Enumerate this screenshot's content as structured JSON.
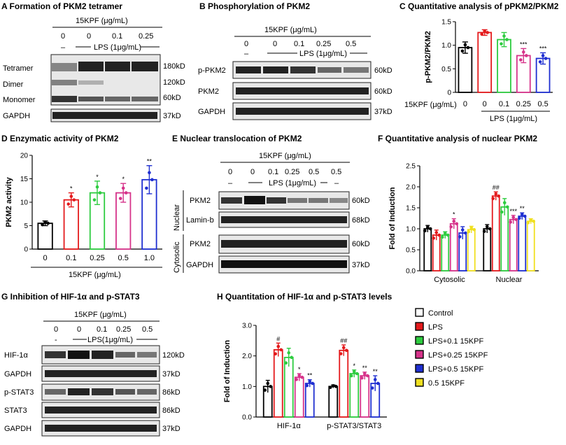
{
  "figure": {
    "colors": {
      "control": "#000000",
      "lps": "#e41a1c",
      "lps01": "#2ecc40",
      "lps025": "#d6338a",
      "lps05": "#1f2fd1",
      "kpf05": "#f0e020"
    },
    "panel_a": {
      "title": "A Formation of PKM2 tetramer",
      "treatment": "15KPF (μg/mL)",
      "doses": [
        "0",
        "0",
        "0.1",
        "0.25"
      ],
      "dash": "–",
      "lps": "LPS (1μg/mL)",
      "rows": [
        "Tetramer",
        "Dimer",
        "Monomer",
        "GAPDH"
      ],
      "sizes": [
        "180kD",
        "120kD",
        "60kD",
        "37kD"
      ]
    },
    "panel_b": {
      "title": "B Phosphorylation of PKM2",
      "treatment": "15KPF (μg/mL)",
      "doses": [
        "0",
        "0",
        "0.1",
        "0.25",
        "0.5"
      ],
      "dash": "–",
      "lps": "LPS (1μg/mL)",
      "rows": [
        "p-PKM2",
        "PKM2",
        "GAPDH"
      ],
      "sizes": [
        "60kD",
        "60kD",
        "37kD"
      ]
    },
    "panel_c": {
      "title": "C Quantitative analysis of pPKM2/PKM2",
      "treatment": "15KPF (μg/mL)",
      "lps": "LPS (1μg/mL)"
    },
    "panel_d": {
      "title": "D Enzymatic activity of PKM2",
      "xlabel": "15KPF (μg/mL)"
    },
    "panel_e": {
      "title": "E Nuclear translocation of PKM2",
      "treatment": "15KPF (μg/mL)",
      "doses": [
        "0",
        "0",
        "0.1",
        "0.25",
        "0.5",
        "0.5"
      ],
      "dash": "–",
      "lps": "LPS (1μg/mL)",
      "group1": "Nuclear",
      "group2": "Cytosolic",
      "rows": [
        "PKM2",
        "Lamin-b",
        "PKM2",
        "GAPDH"
      ],
      "sizes": [
        "60kD",
        "68kD",
        "60kD",
        "37kD"
      ]
    },
    "panel_f": {
      "title": "F Quantitative analysis of nuclear PKM2"
    },
    "panel_g": {
      "title": "G Inhibition of HIF-1α and p-STAT3",
      "treatment": "15KPF (μg/mL)",
      "doses": [
        "0",
        "0",
        "0.1",
        "0.25",
        "0.5"
      ],
      "dash": "-",
      "lps": "LPS(1μg/mL)",
      "rows": [
        "HIF-1α",
        "GAPDH",
        "p-STAT3",
        "STAT3",
        "GAPDH"
      ],
      "sizes": [
        "120kD",
        "37kD",
        "86kD",
        "86kD",
        "37kD"
      ]
    },
    "panel_h": {
      "title": "H Quantitation of HIF-1α and p-STAT3 levels"
    },
    "legend": [
      "Control",
      "LPS",
      "LPS+0.1 15KPF",
      "LPS+0.25 15KPF",
      "LPS+0.5 15KPF",
      "0.5 15KPF"
    ]
  },
  "chart_data": [
    {
      "type": "bar",
      "panel": "C",
      "ylabel": "p-PKM2/PKM2",
      "ylim": [
        0,
        1.5
      ],
      "yticks": [
        "0",
        "0.5",
        "1.0",
        "1.5"
      ],
      "categories": [
        "0",
        "0",
        "0.1",
        "0.25",
        "0.5"
      ],
      "values": [
        0.95,
        1.27,
        1.12,
        0.78,
        0.72
      ],
      "errors": [
        0.12,
        0.06,
        0.15,
        0.15,
        0.12
      ],
      "marks": [
        "",
        "",
        "",
        "***",
        "***"
      ],
      "x_row_label": "15KPF (μg/mL)",
      "group_label": "LPS (1μg/mL)"
    },
    {
      "type": "bar",
      "panel": "D",
      "ylabel": "PKM2 activity",
      "ylim": [
        0,
        20
      ],
      "yticks": [
        "0",
        "5",
        "10",
        "15",
        "20"
      ],
      "categories": [
        "0",
        "0.1",
        "0.25",
        "0.5",
        "1.0"
      ],
      "values": [
        5.5,
        10.5,
        12.0,
        12.0,
        14.8
      ],
      "errors": [
        0.5,
        1.5,
        2.5,
        2.0,
        3.0
      ],
      "marks": [
        "",
        "*",
        "*",
        "*",
        "**"
      ],
      "xlabel": "15KPF (μg/mL)"
    },
    {
      "type": "bar",
      "panel": "F",
      "ylabel": "Fold of Induction",
      "ylim": [
        0,
        2.5
      ],
      "yticks": [
        "0.0",
        "0.5",
        "1.0",
        "1.5",
        "2.0",
        "2.5"
      ],
      "categories": [
        "Cytosolic",
        "Nuclear"
      ],
      "series": [
        {
          "name": "Control",
          "values": [
            1.0,
            1.0
          ],
          "errors": [
            0.08,
            0.1
          ],
          "marks": [
            "",
            ""
          ]
        },
        {
          "name": "LPS",
          "values": [
            0.85,
            1.78
          ],
          "errors": [
            0.12,
            0.1
          ],
          "marks": [
            "",
            "##"
          ]
        },
        {
          "name": "LPS+0.1 15KPF",
          "values": [
            0.85,
            1.52
          ],
          "errors": [
            0.08,
            0.2
          ],
          "marks": [
            "",
            ""
          ]
        },
        {
          "name": "LPS+0.25 15KPF",
          "values": [
            1.12,
            1.22
          ],
          "errors": [
            0.12,
            0.1
          ],
          "marks": [
            "*",
            "***"
          ]
        },
        {
          "name": "LPS+0.5 15KPF",
          "values": [
            0.9,
            1.3
          ],
          "errors": [
            0.15,
            0.08
          ],
          "marks": [
            "",
            "**"
          ]
        },
        {
          "name": "0.5 15KPF",
          "values": [
            0.98,
            1.18
          ],
          "errors": [
            0.08,
            0.06
          ],
          "marks": [
            "",
            ""
          ]
        }
      ]
    },
    {
      "type": "bar",
      "panel": "H",
      "ylabel": "Fold of Induction",
      "ylim": [
        0,
        3.0
      ],
      "yticks": [
        "0.0",
        "1.0",
        "2.0",
        "3.0"
      ],
      "categories": [
        "HIF-1α",
        "p-STAT3/STAT3"
      ],
      "series": [
        {
          "name": "Control",
          "values": [
            1.0,
            1.0
          ],
          "errors": [
            0.2,
            0.05
          ],
          "marks": [
            "",
            ""
          ]
        },
        {
          "name": "LPS",
          "values": [
            2.2,
            2.18
          ],
          "errors": [
            0.22,
            0.18
          ],
          "marks": [
            "#",
            "##"
          ]
        },
        {
          "name": "LPS+0.1 15KPF",
          "values": [
            1.95,
            1.42
          ],
          "errors": [
            0.3,
            0.12
          ],
          "marks": [
            "",
            "*"
          ]
        },
        {
          "name": "LPS+0.25 15KPF",
          "values": [
            1.3,
            1.35
          ],
          "errors": [
            0.12,
            0.12
          ],
          "marks": [
            "*",
            "**"
          ]
        },
        {
          "name": "LPS+0.5 15KPF",
          "values": [
            1.1,
            1.1
          ],
          "errors": [
            0.12,
            0.25
          ],
          "marks": [
            "**",
            "**"
          ]
        }
      ]
    }
  ]
}
